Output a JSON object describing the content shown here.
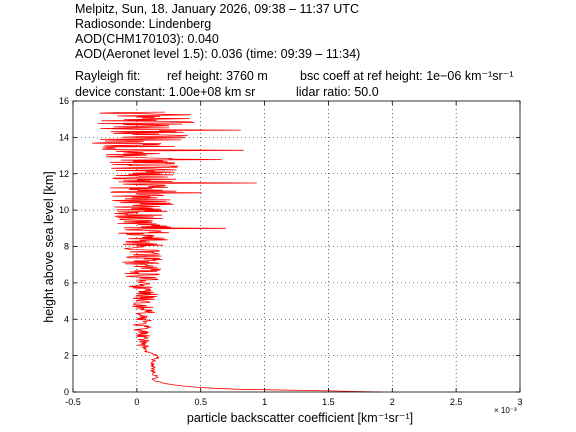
{
  "chart_data": {
    "type": "line",
    "title_lines": [
      "Melpitz, Sun, 18. January 2026, 09:38 – 11:37 UTC",
      "Radiosonde: Lindenberg",
      "AOD(CHM170103): 0.040",
      "AOD(Aeronet level 1.5): 0.036   (time: 09:39 – 11:34)"
    ],
    "rayleigh_fit": {
      "label": "Rayleigh fit:",
      "ref_height": "ref height: 3760 m",
      "bsc_coeff": "bsc coeff at ref height: 1e−06 km⁻¹sr⁻¹"
    },
    "device_line": {
      "device_constant": "device constant: 1.00e+08 km sr",
      "lidar_ratio": "lidar ratio: 50.0"
    },
    "xlabel": "particle backscatter coefficient [km⁻¹sr⁻¹]",
    "ylabel": "height above sea level [km]",
    "x_multiplier": "× 10⁻³",
    "xlim": [
      -0.5,
      3.0
    ],
    "ylim": [
      0,
      16
    ],
    "x_ticks": [
      "-0.5",
      "0",
      "0.5",
      "1",
      "1.5",
      "2",
      "2.5",
      "3"
    ],
    "y_ticks": [
      "0",
      "2",
      "4",
      "6",
      "8",
      "10",
      "12",
      "14",
      "16"
    ],
    "x_tick_values": [
      -0.5,
      0,
      0.5,
      1,
      1.5,
      2,
      2.5,
      3
    ],
    "y_tick_values": [
      0,
      2,
      4,
      6,
      8,
      10,
      12,
      14,
      16
    ],
    "grid": true,
    "line_color": "#ff0000",
    "series": [
      {
        "profile": [
          [
            1.9,
            0.0
          ],
          [
            1.6,
            0.05
          ],
          [
            1.2,
            0.1
          ],
          [
            0.8,
            0.15
          ],
          [
            0.55,
            0.22
          ],
          [
            0.4,
            0.3
          ],
          [
            0.28,
            0.4
          ],
          [
            0.2,
            0.5
          ],
          [
            0.15,
            0.6
          ],
          [
            0.12,
            0.7
          ],
          [
            0.16,
            0.8
          ],
          [
            0.13,
            1.0
          ],
          [
            0.12,
            1.2
          ],
          [
            0.13,
            1.4
          ],
          [
            0.12,
            1.6
          ],
          [
            0.14,
            1.8
          ],
          [
            0.18,
            1.9
          ],
          [
            0.16,
            2.0
          ],
          [
            0.12,
            2.1
          ],
          [
            0.08,
            2.2
          ],
          [
            0.06,
            2.4
          ],
          [
            0.05,
            2.6
          ],
          [
            0.04,
            2.8
          ],
          [
            0.05,
            3.0
          ],
          [
            0.04,
            3.5
          ],
          [
            0.05,
            4.0
          ],
          [
            0.06,
            4.5
          ],
          [
            0.05,
            5.0
          ],
          [
            0.06,
            5.5
          ],
          [
            0.05,
            6.0
          ],
          [
            0.04,
            6.5
          ],
          [
            0.04,
            7.0
          ],
          [
            0.05,
            7.5
          ],
          [
            0.06,
            8.0
          ],
          [
            0.05,
            8.5
          ],
          [
            0.06,
            9.0
          ],
          [
            0.05,
            9.5
          ],
          [
            0.05,
            10.0
          ],
          [
            0.06,
            10.5
          ],
          [
            0.05,
            11.0
          ],
          [
            0.05,
            11.5
          ],
          [
            0.06,
            12.0
          ],
          [
            0.05,
            12.5
          ],
          [
            0.06,
            13.0
          ],
          [
            0.06,
            13.5
          ],
          [
            0.05,
            14.0
          ],
          [
            0.06,
            14.5
          ],
          [
            0.07,
            15.0
          ],
          [
            0.08,
            15.4
          ]
        ]
      }
    ]
  }
}
